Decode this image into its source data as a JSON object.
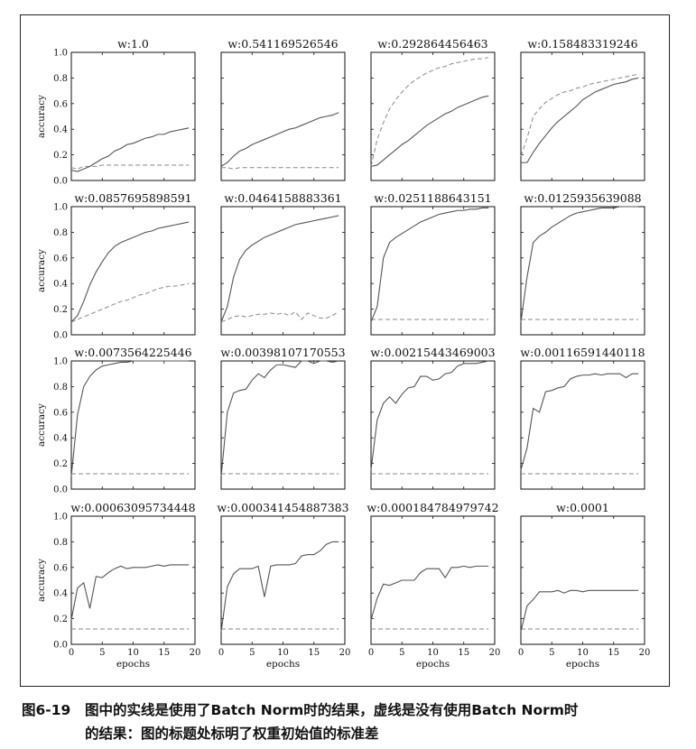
{
  "figure": {
    "caption_number": "图6-19",
    "caption_line1": "图中的实线是使用了Batch Norm时的结果，虚线是没有使用Batch Norm时",
    "caption_line2": "的结果：图的标题处标明了权重初始值的标准差"
  },
  "chart_data": {
    "type": "line",
    "layout": "4x4 grid of small multiples",
    "xlabel": "epochs",
    "ylabel": "accuracy",
    "xlim": [
      0,
      20
    ],
    "ylim": [
      0.0,
      1.0
    ],
    "xticks": [
      "0",
      "5",
      "10",
      "15",
      "20"
    ],
    "yticks": [
      "0.0",
      "0.2",
      "0.4",
      "0.6",
      "0.8",
      "1.0"
    ],
    "grid": false,
    "legend": "none",
    "styles": {
      "solid_color": "#555555",
      "dashed_color": "#8a8a8a"
    },
    "panels": [
      {
        "title": "w:1.0",
        "solid": [
          0.08,
          0.07,
          0.09,
          0.11,
          0.14,
          0.17,
          0.19,
          0.23,
          0.25,
          0.28,
          0.29,
          0.31,
          0.33,
          0.34,
          0.36,
          0.36,
          0.38,
          0.39,
          0.4,
          0.41
        ],
        "dashed": [
          0.1,
          0.09,
          0.11,
          0.11,
          0.11,
          0.12,
          0.12,
          0.12,
          0.12,
          0.12,
          0.12,
          0.12,
          0.12,
          0.12,
          0.12,
          0.12,
          0.12,
          0.12,
          0.12,
          0.12
        ]
      },
      {
        "title": "w:0.541169526546",
        "solid": [
          0.11,
          0.14,
          0.19,
          0.23,
          0.25,
          0.28,
          0.3,
          0.32,
          0.34,
          0.36,
          0.38,
          0.4,
          0.41,
          0.43,
          0.45,
          0.47,
          0.49,
          0.5,
          0.51,
          0.53
        ],
        "dashed": [
          0.1,
          0.1,
          0.09,
          0.1,
          0.1,
          0.1,
          0.1,
          0.1,
          0.1,
          0.1,
          0.1,
          0.1,
          0.1,
          0.1,
          0.1,
          0.1,
          0.1,
          0.1,
          0.1,
          0.1
        ]
      },
      {
        "title": "w:0.292864456463",
        "solid": [
          0.11,
          0.12,
          0.16,
          0.2,
          0.24,
          0.28,
          0.31,
          0.35,
          0.39,
          0.43,
          0.46,
          0.49,
          0.52,
          0.54,
          0.57,
          0.59,
          0.61,
          0.63,
          0.65,
          0.66
        ],
        "dashed": [
          0.11,
          0.32,
          0.45,
          0.56,
          0.63,
          0.69,
          0.74,
          0.78,
          0.81,
          0.84,
          0.86,
          0.88,
          0.89,
          0.91,
          0.92,
          0.93,
          0.94,
          0.95,
          0.95,
          0.96
        ]
      },
      {
        "title": "w:0.158483319246",
        "solid": [
          0.14,
          0.14,
          0.22,
          0.29,
          0.35,
          0.41,
          0.46,
          0.5,
          0.54,
          0.58,
          0.63,
          0.66,
          0.69,
          0.71,
          0.73,
          0.75,
          0.76,
          0.77,
          0.79,
          0.8
        ],
        "dashed": [
          0.19,
          0.33,
          0.5,
          0.56,
          0.61,
          0.64,
          0.67,
          0.69,
          0.7,
          0.72,
          0.73,
          0.75,
          0.76,
          0.77,
          0.78,
          0.79,
          0.8,
          0.81,
          0.82,
          0.83
        ]
      },
      {
        "title": "w:0.0857695898591",
        "solid": [
          0.1,
          0.15,
          0.26,
          0.39,
          0.49,
          0.57,
          0.64,
          0.69,
          0.72,
          0.74,
          0.76,
          0.78,
          0.8,
          0.81,
          0.83,
          0.84,
          0.85,
          0.86,
          0.87,
          0.88
        ],
        "dashed": [
          0.1,
          0.12,
          0.14,
          0.16,
          0.18,
          0.2,
          0.22,
          0.24,
          0.26,
          0.27,
          0.29,
          0.31,
          0.32,
          0.34,
          0.36,
          0.37,
          0.38,
          0.38,
          0.39,
          0.4
        ]
      },
      {
        "title": "w:0.0464158883361",
        "solid": [
          0.1,
          0.22,
          0.45,
          0.59,
          0.66,
          0.7,
          0.73,
          0.76,
          0.78,
          0.8,
          0.82,
          0.84,
          0.86,
          0.87,
          0.88,
          0.89,
          0.9,
          0.91,
          0.92,
          0.93
        ],
        "dashed": [
          0.1,
          0.12,
          0.14,
          0.15,
          0.14,
          0.15,
          0.16,
          0.16,
          0.17,
          0.16,
          0.17,
          0.15,
          0.18,
          0.12,
          0.17,
          0.15,
          0.13,
          0.13,
          0.15,
          0.18
        ]
      },
      {
        "title": "w:0.0251188643151",
        "solid": [
          0.1,
          0.22,
          0.6,
          0.72,
          0.76,
          0.79,
          0.82,
          0.85,
          0.88,
          0.9,
          0.92,
          0.94,
          0.95,
          0.96,
          0.97,
          0.97,
          0.98,
          0.98,
          0.99,
          0.99
        ],
        "dashed": [
          0.12,
          0.12,
          0.12,
          0.12,
          0.12,
          0.12,
          0.12,
          0.12,
          0.12,
          0.12,
          0.12,
          0.12,
          0.12,
          0.12,
          0.12,
          0.12,
          0.12,
          0.12,
          0.12,
          0.12
        ]
      },
      {
        "title": "w:0.0125935639088",
        "solid": [
          0.1,
          0.45,
          0.72,
          0.77,
          0.8,
          0.84,
          0.87,
          0.9,
          0.93,
          0.95,
          0.96,
          0.97,
          0.98,
          0.99,
          0.99,
          0.99,
          1.0,
          1.0,
          1.0,
          1.0
        ],
        "dashed": [
          0.12,
          0.12,
          0.12,
          0.12,
          0.12,
          0.12,
          0.12,
          0.12,
          0.12,
          0.12,
          0.12,
          0.12,
          0.12,
          0.12,
          0.12,
          0.12,
          0.12,
          0.12,
          0.12,
          0.12
        ]
      },
      {
        "title": "w:0.0073564225446",
        "solid": [
          0.1,
          0.58,
          0.8,
          0.88,
          0.93,
          0.96,
          0.97,
          0.98,
          0.99,
          0.99,
          1.0,
          1.0,
          1.0,
          1.0,
          1.0,
          1.0,
          1.0,
          1.0,
          1.0,
          1.0
        ],
        "dashed": [
          0.12,
          0.12,
          0.12,
          0.12,
          0.12,
          0.12,
          0.12,
          0.12,
          0.12,
          0.12,
          0.12,
          0.12,
          0.12,
          0.12,
          0.12,
          0.12,
          0.12,
          0.12,
          0.12,
          0.12
        ]
      },
      {
        "title": "w:0.00398107170553",
        "solid": [
          0.1,
          0.6,
          0.75,
          0.77,
          0.78,
          0.85,
          0.9,
          0.87,
          0.93,
          0.97,
          0.97,
          0.96,
          0.95,
          1.0,
          1.0,
          0.98,
          1.0,
          1.0,
          0.99,
          1.0
        ],
        "dashed": [
          0.12,
          0.12,
          0.12,
          0.12,
          0.12,
          0.12,
          0.12,
          0.12,
          0.12,
          0.12,
          0.12,
          0.12,
          0.12,
          0.12,
          0.12,
          0.12,
          0.12,
          0.12,
          0.12,
          0.12
        ]
      },
      {
        "title": "w:0.00215443469003",
        "solid": [
          0.15,
          0.54,
          0.67,
          0.72,
          0.67,
          0.74,
          0.79,
          0.8,
          0.88,
          0.88,
          0.85,
          0.86,
          0.9,
          0.91,
          0.96,
          0.98,
          0.98,
          0.98,
          0.99,
          1.0
        ],
        "dashed": [
          0.12,
          0.12,
          0.12,
          0.12,
          0.12,
          0.12,
          0.12,
          0.12,
          0.12,
          0.12,
          0.12,
          0.12,
          0.12,
          0.12,
          0.12,
          0.12,
          0.12,
          0.12,
          0.12,
          0.12
        ]
      },
      {
        "title": "w:0.00116591440118",
        "solid": [
          0.15,
          0.32,
          0.63,
          0.6,
          0.76,
          0.77,
          0.79,
          0.8,
          0.86,
          0.88,
          0.89,
          0.89,
          0.9,
          0.89,
          0.9,
          0.9,
          0.9,
          0.87,
          0.9,
          0.9
        ],
        "dashed": [
          0.12,
          0.12,
          0.12,
          0.12,
          0.12,
          0.12,
          0.12,
          0.12,
          0.12,
          0.12,
          0.12,
          0.12,
          0.12,
          0.12,
          0.12,
          0.12,
          0.12,
          0.12,
          0.12,
          0.12
        ]
      },
      {
        "title": "w:0.00063095734448",
        "solid": [
          0.19,
          0.44,
          0.48,
          0.28,
          0.53,
          0.52,
          0.56,
          0.59,
          0.61,
          0.59,
          0.6,
          0.6,
          0.6,
          0.61,
          0.62,
          0.61,
          0.62,
          0.62,
          0.62,
          0.62
        ],
        "dashed": [
          0.12,
          0.12,
          0.12,
          0.12,
          0.12,
          0.12,
          0.12,
          0.12,
          0.12,
          0.12,
          0.12,
          0.12,
          0.12,
          0.12,
          0.12,
          0.12,
          0.12,
          0.12,
          0.12,
          0.12
        ]
      },
      {
        "title": "w:0.000341454887383",
        "solid": [
          0.1,
          0.45,
          0.55,
          0.59,
          0.59,
          0.59,
          0.61,
          0.37,
          0.61,
          0.62,
          0.62,
          0.62,
          0.63,
          0.69,
          0.7,
          0.7,
          0.73,
          0.78,
          0.8,
          0.8
        ],
        "dashed": [
          0.12,
          0.12,
          0.12,
          0.12,
          0.12,
          0.12,
          0.12,
          0.12,
          0.12,
          0.12,
          0.12,
          0.12,
          0.12,
          0.12,
          0.12,
          0.12,
          0.12,
          0.12,
          0.12,
          0.12
        ]
      },
      {
        "title": "w:0.000184784979742",
        "solid": [
          0.19,
          0.36,
          0.47,
          0.46,
          0.48,
          0.5,
          0.5,
          0.5,
          0.56,
          0.59,
          0.59,
          0.59,
          0.52,
          0.6,
          0.6,
          0.61,
          0.6,
          0.61,
          0.61,
          0.61
        ],
        "dashed": [
          0.12,
          0.12,
          0.12,
          0.12,
          0.12,
          0.12,
          0.12,
          0.12,
          0.12,
          0.12,
          0.12,
          0.12,
          0.12,
          0.12,
          0.12,
          0.12,
          0.12,
          0.12,
          0.12,
          0.12
        ]
      },
      {
        "title": "w:0.0001",
        "solid": [
          0.1,
          0.3,
          0.35,
          0.41,
          0.41,
          0.41,
          0.42,
          0.4,
          0.42,
          0.42,
          0.41,
          0.42,
          0.42,
          0.42,
          0.42,
          0.42,
          0.42,
          0.42,
          0.42,
          0.42
        ],
        "dashed": [
          0.12,
          0.12,
          0.12,
          0.12,
          0.12,
          0.12,
          0.12,
          0.12,
          0.12,
          0.12,
          0.12,
          0.12,
          0.12,
          0.12,
          0.12,
          0.12,
          0.12,
          0.12,
          0.12,
          0.12
        ]
      }
    ]
  }
}
